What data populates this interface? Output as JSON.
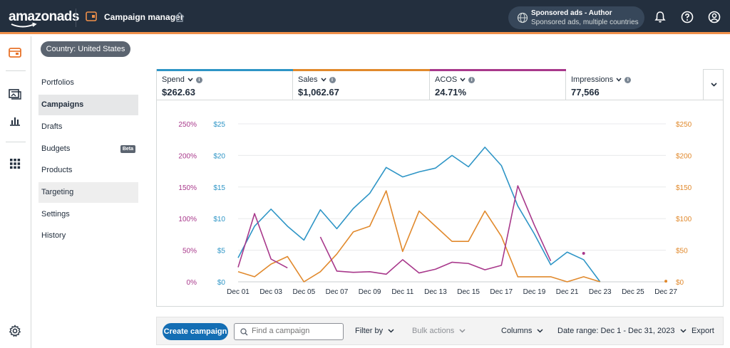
{
  "header": {
    "logo_text": "amazonads",
    "app_title": "Campaign manager",
    "account_name": "Sponsored ads - Author",
    "account_scope": "Sponsored ads, multiple countries",
    "accent_color": "#f0904a"
  },
  "rail": {
    "icons": [
      "wallet-icon",
      "media-icon",
      "bar-chart-icon",
      "apps-grid-icon",
      "settings-gear-icon"
    ]
  },
  "country_button": "Country: United States",
  "nav": {
    "items": [
      {
        "label": "Portfolios"
      },
      {
        "label": "Campaigns"
      },
      {
        "label": "Drafts"
      },
      {
        "label": "Budgets",
        "badge": "Beta"
      },
      {
        "label": "Products"
      },
      {
        "label": "Targeting"
      },
      {
        "label": "Settings"
      },
      {
        "label": "History"
      }
    ]
  },
  "metrics": [
    {
      "label": "Spend",
      "value": "$262.63",
      "color": "#2e95c6"
    },
    {
      "label": "Sales",
      "value": "$1,062.67",
      "color": "#e1892c"
    },
    {
      "label": "ACOS",
      "value": "24.71%",
      "color": "#a8388b"
    },
    {
      "label": "Impressions",
      "value": "77,566",
      "color": "#ffffff"
    }
  ],
  "chart_data": {
    "type": "line",
    "x": [
      "Dec 01",
      "Dec 02",
      "Dec 03",
      "Dec 04",
      "Dec 05",
      "Dec 06",
      "Dec 07",
      "Dec 08",
      "Dec 09",
      "Dec 10",
      "Dec 11",
      "Dec 12",
      "Dec 13",
      "Dec 14",
      "Dec 15",
      "Dec 16",
      "Dec 17",
      "Dec 18",
      "Dec 19",
      "Dec 20",
      "Dec 21",
      "Dec 22",
      "Dec 23",
      "Dec 24",
      "Dec 25",
      "Dec 26",
      "Dec 27"
    ],
    "x_tick_labels": [
      "Dec 01",
      "Dec 03",
      "Dec 05",
      "Dec 07",
      "Dec 09",
      "Dec 11",
      "Dec 13",
      "Dec 15",
      "Dec 17",
      "Dec 19",
      "Dec 21",
      "Dec 23",
      "Dec 25",
      "Dec 27"
    ],
    "acos_ticks": [
      "0%",
      "50%",
      "100%",
      "150%",
      "200%",
      "250%"
    ],
    "spend_ticks": [
      "$0",
      "$5",
      "$10",
      "$15",
      "$20",
      "$25"
    ],
    "sales_ticks": [
      "$0",
      "$50",
      "$100",
      "$150",
      "$200",
      "$250"
    ],
    "series": [
      {
        "name": "Spend",
        "axis": "left-inner",
        "max": 25,
        "color": "#2e95c6",
        "values": [
          3.8,
          8.8,
          11.5,
          8.8,
          6.6,
          11.4,
          8.4,
          11.6,
          14.0,
          18.1,
          16.6,
          17.4,
          18.0,
          20.0,
          18.2,
          21.3,
          18.4,
          12.0,
          7.6,
          2.7,
          4.7,
          3.5,
          0.0,
          null,
          null,
          null,
          null
        ]
      },
      {
        "name": "Sales",
        "axis": "right",
        "max": 250,
        "color": "#e1892c",
        "values": [
          16,
          8,
          28,
          40,
          0,
          16,
          44,
          79,
          88,
          144,
          48,
          112,
          88,
          64,
          64,
          112,
          72,
          8,
          8,
          8,
          0,
          8,
          0,
          null,
          null,
          null,
          1
        ]
      },
      {
        "name": "ACOS",
        "axis": "left-outer",
        "max": 250,
        "color": "#a8388b",
        "values": [
          23,
          108,
          36,
          22,
          null,
          71,
          17,
          15,
          16,
          12,
          35,
          14,
          20,
          31,
          29,
          19,
          26,
          152,
          90,
          33,
          null,
          45,
          null,
          null,
          null,
          null,
          null
        ]
      }
    ]
  },
  "toolbar": {
    "create_label": "Create campaign",
    "search_placeholder": "Find a campaign",
    "filter_label": "Filter by",
    "bulk_label": "Bulk actions",
    "columns_label": "Columns",
    "date_range_label": "Date range: Dec 1 - Dec 31, 2023",
    "export_label": "Export"
  }
}
